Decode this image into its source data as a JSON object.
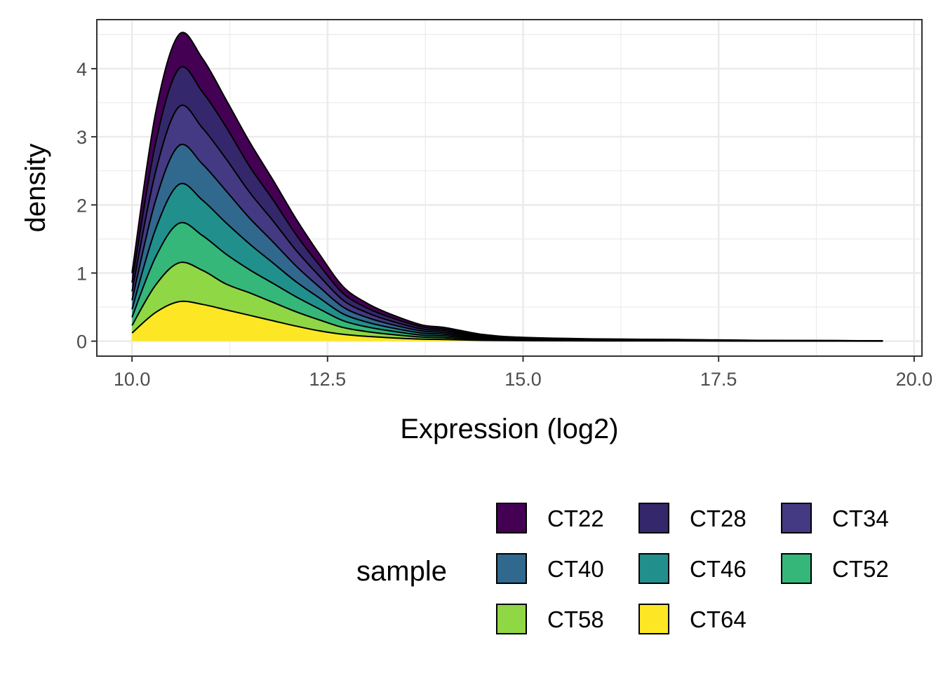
{
  "chart_data": {
    "type": "area",
    "stacked": true,
    "title": "",
    "xlabel": "Expression (log2)",
    "ylabel": "density",
    "xlim": [
      9.55,
      20.1
    ],
    "ylim": [
      -0.22,
      4.72
    ],
    "x_ticks": [
      10.0,
      12.5,
      15.0,
      17.5,
      20.0
    ],
    "x_tick_labels": [
      "10.0",
      "12.5",
      "15.0",
      "17.5",
      "20.0"
    ],
    "y_ticks": [
      0,
      1,
      2,
      3,
      4
    ],
    "y_tick_labels": [
      "0",
      "1",
      "2",
      "3",
      "4"
    ],
    "grid": true,
    "legend": {
      "title": "sample",
      "position": "bottom-right",
      "columns": 3
    },
    "x": [
      10.0,
      10.3,
      10.6,
      10.9,
      11.2,
      11.5,
      11.8,
      12.1,
      12.4,
      12.7,
      13.0,
      13.3,
      13.7,
      14.0,
      14.5,
      15.0,
      16.0,
      17.0,
      18.0,
      19.0,
      19.6
    ],
    "series": [
      {
        "name": "CT64",
        "color": "#FDE725",
        "values": [
          0.12,
          0.42,
          0.58,
          0.54,
          0.46,
          0.38,
          0.3,
          0.22,
          0.15,
          0.1,
          0.07,
          0.05,
          0.03,
          0.025,
          0.012,
          0.007,
          0.004,
          0.003,
          0.0015,
          0.001,
          0.0005
        ]
      },
      {
        "name": "CT58",
        "color": "#8FD744",
        "values": [
          0.11,
          0.4,
          0.57,
          0.5,
          0.38,
          0.33,
          0.27,
          0.21,
          0.16,
          0.1,
          0.07,
          0.05,
          0.03,
          0.025,
          0.012,
          0.007,
          0.004,
          0.003,
          0.0015,
          0.001,
          0.0005
        ]
      },
      {
        "name": "CT52",
        "color": "#35B779",
        "values": [
          0.12,
          0.41,
          0.58,
          0.51,
          0.44,
          0.34,
          0.28,
          0.22,
          0.16,
          0.1,
          0.07,
          0.05,
          0.03,
          0.025,
          0.012,
          0.007,
          0.004,
          0.003,
          0.0015,
          0.001,
          0.0005
        ]
      },
      {
        "name": "CT46",
        "color": "#21908C",
        "values": [
          0.12,
          0.41,
          0.57,
          0.52,
          0.46,
          0.38,
          0.3,
          0.22,
          0.16,
          0.1,
          0.07,
          0.05,
          0.03,
          0.025,
          0.012,
          0.007,
          0.004,
          0.003,
          0.0015,
          0.001,
          0.0005
        ]
      },
      {
        "name": "CT40",
        "color": "#31688E",
        "values": [
          0.13,
          0.42,
          0.57,
          0.53,
          0.47,
          0.38,
          0.31,
          0.23,
          0.16,
          0.1,
          0.07,
          0.05,
          0.03,
          0.025,
          0.012,
          0.007,
          0.004,
          0.003,
          0.0015,
          0.001,
          0.0005
        ]
      },
      {
        "name": "CT34",
        "color": "#443A83",
        "values": [
          0.13,
          0.42,
          0.57,
          0.53,
          0.47,
          0.38,
          0.31,
          0.23,
          0.16,
          0.1,
          0.07,
          0.05,
          0.03,
          0.025,
          0.012,
          0.007,
          0.004,
          0.003,
          0.0015,
          0.001,
          0.0005
        ]
      },
      {
        "name": "CT28",
        "color": "#35276B",
        "values": [
          0.13,
          0.42,
          0.56,
          0.53,
          0.47,
          0.38,
          0.31,
          0.23,
          0.16,
          0.1,
          0.07,
          0.05,
          0.03,
          0.025,
          0.012,
          0.007,
          0.004,
          0.003,
          0.0015,
          0.001,
          0.0005
        ]
      },
      {
        "name": "CT22",
        "color": "#440154",
        "values": [
          0.14,
          0.44,
          0.5,
          0.49,
          0.4,
          0.36,
          0.29,
          0.23,
          0.16,
          0.1,
          0.07,
          0.05,
          0.03,
          0.025,
          0.012,
          0.007,
          0.004,
          0.003,
          0.0015,
          0.001,
          0.0005
        ]
      }
    ],
    "legend_order": [
      "CT22",
      "CT28",
      "CT34",
      "CT40",
      "CT46",
      "CT52",
      "CT58",
      "CT64"
    ]
  }
}
